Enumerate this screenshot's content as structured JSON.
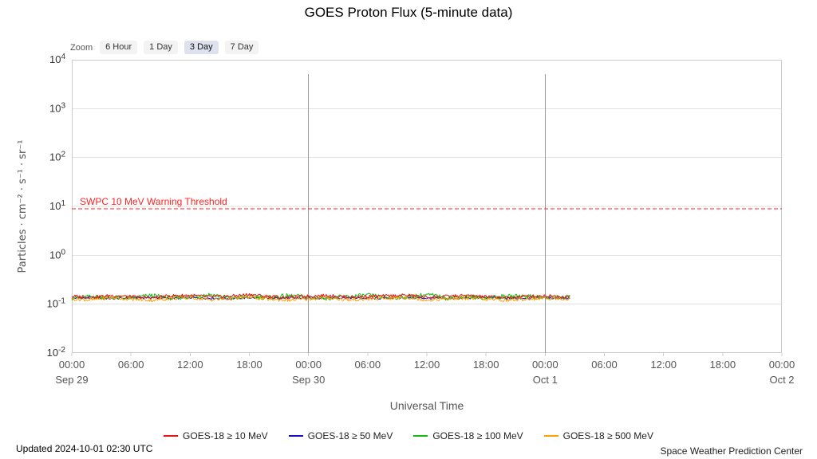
{
  "title": "GOES Proton Flux (5-minute data)",
  "zoom_bar": {
    "label": "Zoom",
    "buttons": [
      {
        "label": "6 Hour",
        "selected": false
      },
      {
        "label": "1 Day",
        "selected": false
      },
      {
        "label": "3 Day",
        "selected": true
      },
      {
        "label": "7 Day",
        "selected": false
      }
    ]
  },
  "chart_data": {
    "type": "line",
    "title": "GOES Proton Flux (5-minute data)",
    "x_axis": {
      "title": "Universal Time",
      "total_hours": 72,
      "tick_interval_hours": 6,
      "tick_labels_cycle": [
        "00:00",
        "06:00",
        "12:00",
        "18:00"
      ],
      "day_labels": [
        {
          "hour": 0,
          "label": "Sep 29"
        },
        {
          "hour": 24,
          "label": "Sep 30"
        },
        {
          "hour": 48,
          "label": "Oct 1"
        },
        {
          "hour": 72,
          "label": "Oct 2"
        }
      ],
      "day_boundary_hours": [
        24,
        48
      ]
    },
    "y_axis": {
      "title": "Particles · cm⁻² · s⁻¹ · sr⁻¹",
      "scale": "log10",
      "tick_exponents": [
        4,
        3,
        2,
        1,
        0,
        -1,
        -2
      ]
    },
    "threshold": {
      "label": "SWPC 10 MeV Warning Threshold",
      "value": 10,
      "color": "#ff2222",
      "style": "dashed"
    },
    "sample_step_hours": 2,
    "data_end_hour": 50.5,
    "series": [
      {
        "name": "GOES-18 ≥ 10 MeV",
        "color": "#ee1111",
        "draw_order": 3,
        "noise": 0.15,
        "values": [
          0.145,
          0.138,
          0.15,
          0.142,
          0.135,
          0.148,
          0.152,
          0.14,
          0.145,
          0.158,
          0.143,
          0.137,
          0.146,
          0.151,
          0.139,
          0.144,
          0.147,
          0.153,
          0.138,
          0.145,
          0.15,
          0.142,
          0.136,
          0.144,
          0.149,
          0.143
        ]
      },
      {
        "name": "GOES-18 ≥ 50 MeV",
        "color": "#1111bb",
        "draw_order": 1,
        "noise": 0.1,
        "values": [
          0.132,
          0.136,
          0.13,
          0.134,
          0.137,
          0.131,
          0.135,
          0.133,
          0.13,
          0.136,
          0.132,
          0.135,
          0.131,
          0.134,
          0.136,
          0.13,
          0.133,
          0.135,
          0.132,
          0.13,
          0.134,
          0.136,
          0.131,
          0.133,
          0.135,
          0.132
        ]
      },
      {
        "name": "GOES-18 ≥ 100 MeV",
        "color": "#11bb11",
        "draw_order": 2,
        "noise": 0.22,
        "values": [
          0.135,
          0.142,
          0.138,
          0.133,
          0.15,
          0.136,
          0.141,
          0.158,
          0.134,
          0.143,
          0.137,
          0.149,
          0.14,
          0.135,
          0.142,
          0.152,
          0.136,
          0.141,
          0.156,
          0.135,
          0.142,
          0.137,
          0.143,
          0.148,
          0.136,
          0.14
        ]
      },
      {
        "name": "GOES-18 ≥ 500 MeV",
        "color": "#ffa000",
        "draw_order": 4,
        "noise": 0.15,
        "values": [
          0.128,
          0.122,
          0.135,
          0.127,
          0.12,
          0.13,
          0.136,
          0.123,
          0.129,
          0.138,
          0.126,
          0.121,
          0.128,
          0.134,
          0.122,
          0.127,
          0.13,
          0.137,
          0.121,
          0.128,
          0.133,
          0.126,
          0.12,
          0.127,
          0.132,
          0.128
        ]
      }
    ]
  },
  "footer": {
    "updated": "Updated 2024-10-01 02:30 UTC",
    "credit": "Space Weather Prediction Center"
  }
}
